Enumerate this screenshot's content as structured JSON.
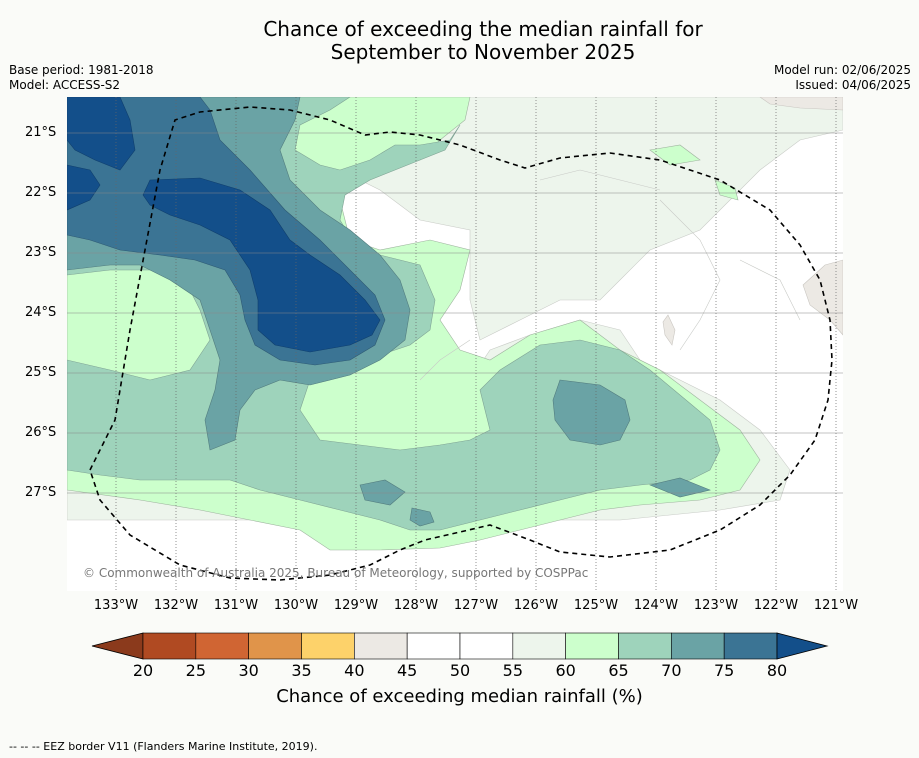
{
  "title_line1": "Chance of exceeding the median rainfall for",
  "title_line2": "September to November 2025",
  "base_period": "Base period: 1981-2018",
  "model": "Model: ACCESS-S2",
  "model_run": "Model run: 02/06/2025",
  "issued": "Issued: 04/06/2025",
  "copyright": "© Commonwealth of Australia 2025, Bureau of Meteorology, supported by COSPPac",
  "lat_labels": [
    "21°S",
    "22°S",
    "23°S",
    "24°S",
    "25°S",
    "26°S",
    "27°S"
  ],
  "lon_labels": [
    "133°W",
    "132°W",
    "131°W",
    "130°W",
    "129°W",
    "128°W",
    "127°W",
    "126°W",
    "125°W",
    "124°W",
    "123°W",
    "122°W",
    "121°W"
  ],
  "colorbar": {
    "ticks": [
      "20",
      "25",
      "30",
      "35",
      "40",
      "45",
      "50",
      "55",
      "60",
      "65",
      "70",
      "75",
      "80"
    ],
    "colors": {
      "under": "#8b3a1c",
      "20-25": "#b04a22",
      "25-30": "#d06533",
      "30-35": "#e0944a",
      "35-40": "#fdd26a",
      "40-45": "#ece9e4",
      "45-50": "#ffffff",
      "50-55": "#ffffff",
      "55-60": "#edf5ec",
      "60-65": "#ccffcc",
      "65-70": "#9ed3bb",
      "70-75": "#6aa3a5",
      "75-80": "#3b7494",
      "over": "#134f8a"
    },
    "label": "Chance of exceeding median rainfall (%)"
  },
  "footer": "--  --  -- EEZ border V11 (Flanders Marine Institute, 2019)."
}
